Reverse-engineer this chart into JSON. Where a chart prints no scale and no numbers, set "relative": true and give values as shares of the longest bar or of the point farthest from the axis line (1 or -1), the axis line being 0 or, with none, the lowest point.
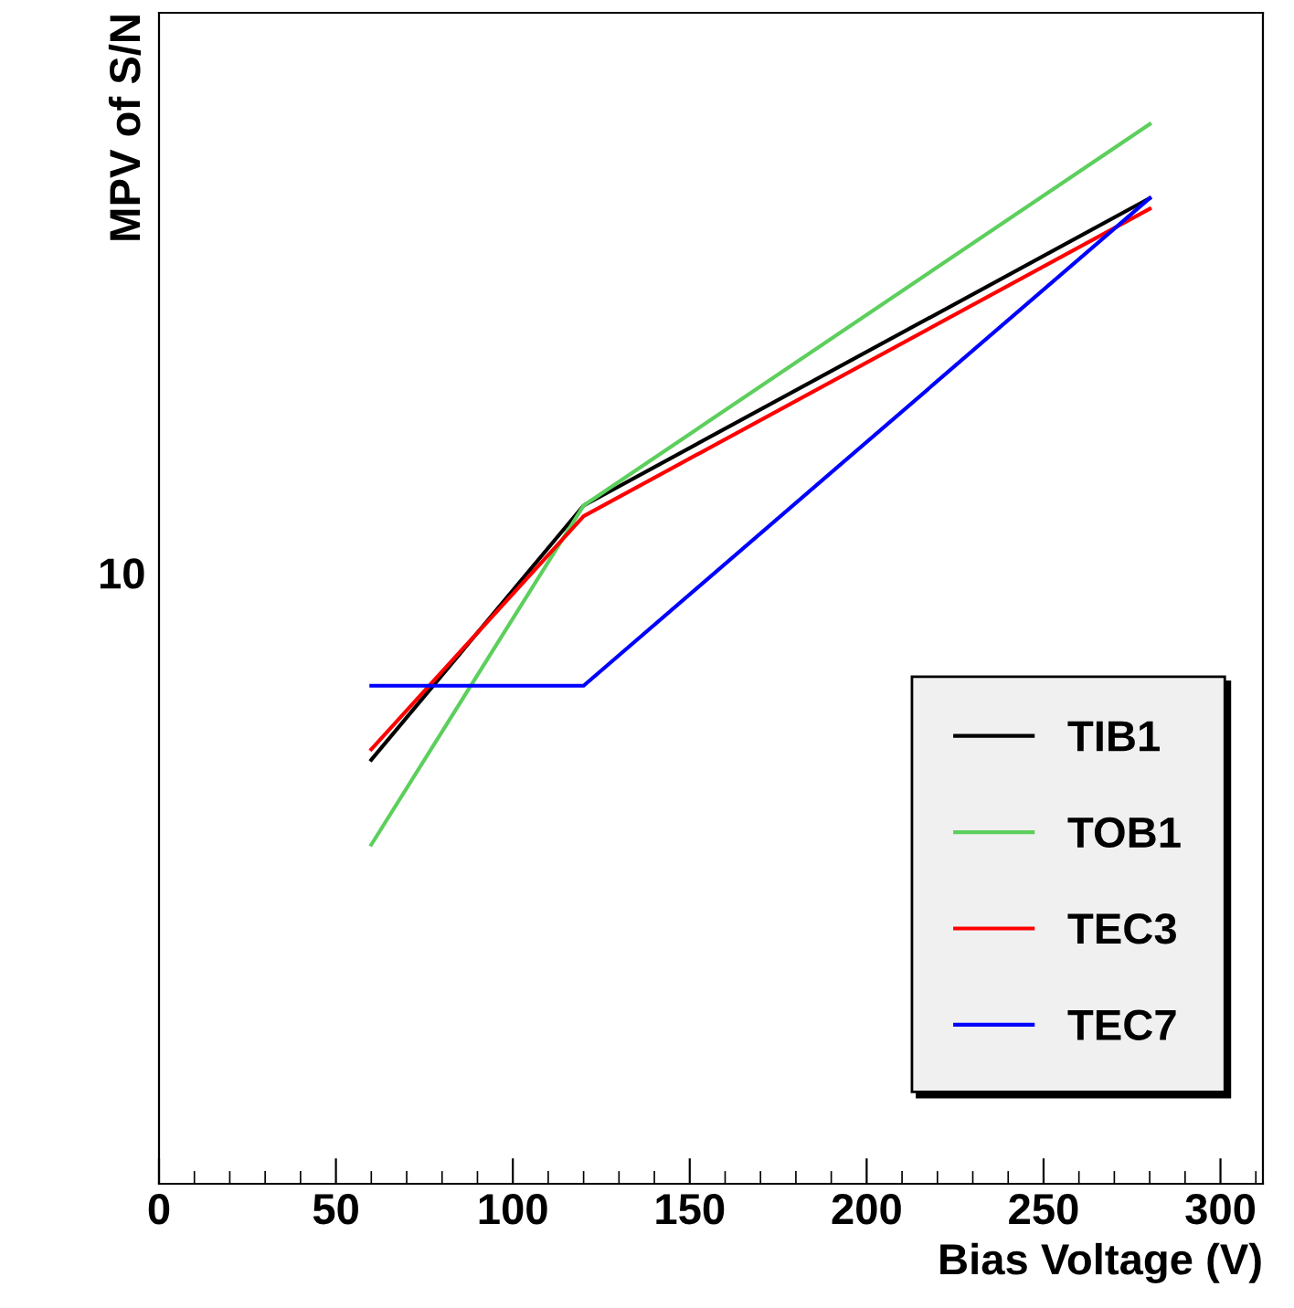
{
  "chart_data": {
    "type": "line",
    "xlabel": "Bias Voltage (V)",
    "ylabel": "MPV of S/N",
    "x": [
      60,
      120,
      280
    ],
    "series": [
      {
        "name": "TIB1",
        "color": "#000000",
        "values": [
          0.4,
          0.64,
          0.93
        ]
      },
      {
        "name": "TOB1",
        "color": "#5ccf5c",
        "values": [
          0.32,
          0.64,
          1
        ]
      },
      {
        "name": "TEC3",
        "color": "#ff0000",
        "values": [
          0.41,
          0.63,
          0.92
        ]
      },
      {
        "name": "TEC7",
        "color": "#0000ff",
        "values": [
          0.47,
          0.47,
          0.93
        ]
      }
    ],
    "relative": true,
    "xlim": [
      0,
      312
    ],
    "xticks": [
      0,
      50,
      100,
      150,
      200,
      250,
      300
    ],
    "annotations": [
      "10"
    ],
    "grid": false,
    "legend": "bottom right",
    "marker": "none",
    "line_style": "solid"
  }
}
